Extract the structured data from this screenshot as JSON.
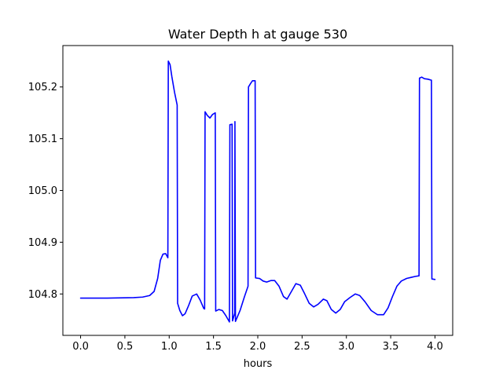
{
  "chart_data": {
    "type": "line",
    "title": "Water Depth h at gauge 530",
    "xlabel": "hours",
    "ylabel": "",
    "xlim": [
      -0.2,
      4.2
    ],
    "ylim": [
      104.72,
      105.28
    ],
    "xticks": [
      0.0,
      0.5,
      1.0,
      1.5,
      2.0,
      2.5,
      3.0,
      3.5,
      4.0
    ],
    "xtick_labels": [
      "0.0",
      "0.5",
      "1.0",
      "1.5",
      "2.0",
      "2.5",
      "3.0",
      "3.5",
      "4.0"
    ],
    "yticks": [
      104.8,
      104.9,
      105.0,
      105.1,
      105.2
    ],
    "ytick_labels": [
      "104.8",
      "104.9",
      "105.0",
      "105.1",
      "105.2"
    ],
    "grid": false,
    "series": [
      {
        "color": "#0000ff",
        "points": [
          [
            0.0,
            104.792
          ],
          [
            0.3,
            104.792
          ],
          [
            0.6,
            104.793
          ],
          [
            0.7,
            104.794
          ],
          [
            0.78,
            104.797
          ],
          [
            0.83,
            104.805
          ],
          [
            0.87,
            104.83
          ],
          [
            0.9,
            104.865
          ],
          [
            0.93,
            104.877
          ],
          [
            0.96,
            104.878
          ],
          [
            0.985,
            104.87
          ],
          [
            0.99,
            105.25
          ],
          [
            1.01,
            105.243
          ],
          [
            1.03,
            105.22
          ],
          [
            1.06,
            105.19
          ],
          [
            1.09,
            105.165
          ],
          [
            1.095,
            104.782
          ],
          [
            1.12,
            104.768
          ],
          [
            1.15,
            104.758
          ],
          [
            1.18,
            104.762
          ],
          [
            1.22,
            104.778
          ],
          [
            1.26,
            104.796
          ],
          [
            1.31,
            104.8
          ],
          [
            1.35,
            104.788
          ],
          [
            1.39,
            104.772
          ],
          [
            1.4,
            104.771
          ],
          [
            1.405,
            105.152
          ],
          [
            1.43,
            105.145
          ],
          [
            1.46,
            105.14
          ],
          [
            1.49,
            105.147
          ],
          [
            1.52,
            105.15
          ],
          [
            1.525,
            104.767
          ],
          [
            1.56,
            104.77
          ],
          [
            1.6,
            104.768
          ],
          [
            1.64,
            104.758
          ],
          [
            1.68,
            104.746
          ],
          [
            1.685,
            105.127
          ],
          [
            1.71,
            105.128
          ],
          [
            1.715,
            104.748
          ],
          [
            1.74,
            104.763
          ],
          [
            1.742,
            105.133
          ],
          [
            1.748,
            104.747
          ],
          [
            1.8,
            104.768
          ],
          [
            1.85,
            104.795
          ],
          [
            1.89,
            104.815
          ],
          [
            1.895,
            105.2
          ],
          [
            1.92,
            105.207
          ],
          [
            1.94,
            105.212
          ],
          [
            1.97,
            105.212
          ],
          [
            1.975,
            104.831
          ],
          [
            2.02,
            104.83
          ],
          [
            2.06,
            104.825
          ],
          [
            2.1,
            104.823
          ],
          [
            2.15,
            104.826
          ],
          [
            2.19,
            104.826
          ],
          [
            2.24,
            104.815
          ],
          [
            2.29,
            104.795
          ],
          [
            2.33,
            104.79
          ],
          [
            2.38,
            104.805
          ],
          [
            2.43,
            104.82
          ],
          [
            2.48,
            104.817
          ],
          [
            2.53,
            104.8
          ],
          [
            2.58,
            104.782
          ],
          [
            2.63,
            104.775
          ],
          [
            2.68,
            104.78
          ],
          [
            2.74,
            104.79
          ],
          [
            2.78,
            104.787
          ],
          [
            2.83,
            104.77
          ],
          [
            2.88,
            104.763
          ],
          [
            2.93,
            104.77
          ],
          [
            2.98,
            104.785
          ],
          [
            3.04,
            104.793
          ],
          [
            3.1,
            104.8
          ],
          [
            3.15,
            104.797
          ],
          [
            3.21,
            104.785
          ],
          [
            3.28,
            104.768
          ],
          [
            3.35,
            104.76
          ],
          [
            3.42,
            104.76
          ],
          [
            3.47,
            104.773
          ],
          [
            3.52,
            104.795
          ],
          [
            3.57,
            104.815
          ],
          [
            3.62,
            104.825
          ],
          [
            3.68,
            104.83
          ],
          [
            3.73,
            104.832
          ],
          [
            3.78,
            104.834
          ],
          [
            3.82,
            104.835
          ],
          [
            3.825,
            105.217
          ],
          [
            3.85,
            105.219
          ],
          [
            3.88,
            105.216
          ],
          [
            3.92,
            105.215
          ],
          [
            3.96,
            105.213
          ],
          [
            3.965,
            104.829
          ],
          [
            4.0,
            104.828
          ]
        ]
      }
    ]
  }
}
